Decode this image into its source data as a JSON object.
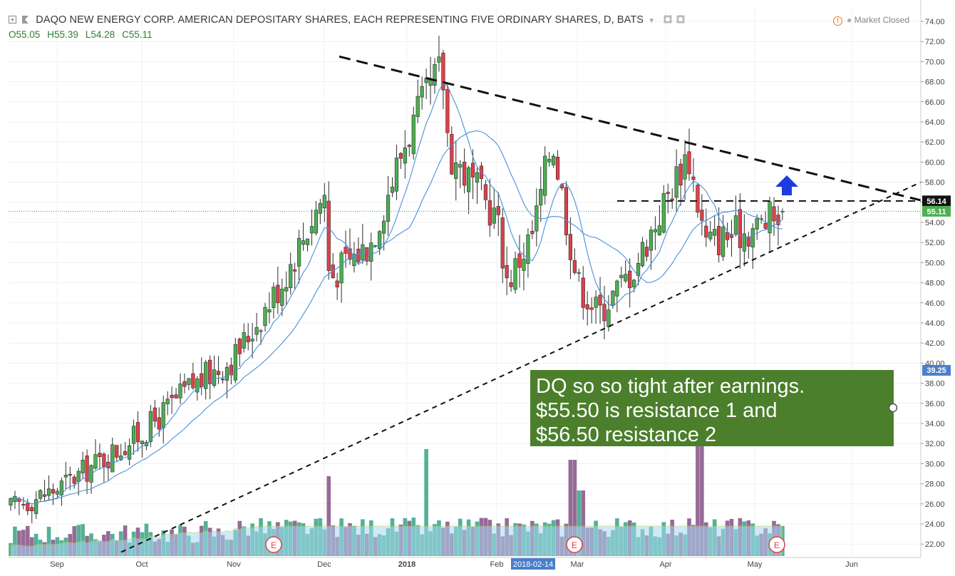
{
  "header": {
    "title": "DAQO NEW ENERGY CORP. AMERICAN DEPOSITARY SHARES, EACH REPRESENTING FIVE ORDINARY SHARES, D, BATS",
    "ohlc": {
      "open": "O55.05",
      "high": "H55.39",
      "low": "L54.28",
      "close": "C55.11"
    },
    "status": "Market Closed"
  },
  "annotation": {
    "line1": "DQ so so tight after earnings.",
    "line2": "$55.50 is resistance 1 and",
    "line3": "$56.50 resistance 2"
  },
  "price_tags": {
    "last": "55.11",
    "resistance": "56.14",
    "volume_scale": "39.25"
  },
  "colors": {
    "up": "#4caf50",
    "down": "#e0404a",
    "ma": "#4a90d9",
    "volume_ma": "#a8d8f0",
    "note_bg": "#4b7f2b",
    "arrow": "#1a3be0"
  },
  "icons": [
    "plus-square-icon",
    "flag-icon",
    "dropdown-icon",
    "settings-icon",
    "warning-icon",
    "earnings-marker-icon",
    "up-arrow-icon"
  ],
  "chart_data": {
    "type": "candlestick",
    "title": "DAQO NEW ENERGY CORP. AMERICAN DEPOSITARY SHARES, EACH REPRESENTING FIVE ORDINARY SHARES, D, BATS",
    "x_ticks": [
      "Sep",
      "Oct",
      "Nov",
      "Dec",
      "2018",
      "Feb",
      "2018-02-14",
      "Mar",
      "Apr",
      "May",
      "Jun"
    ],
    "y_ticks": [
      "74.00",
      "72.00",
      "70.00",
      "68.00",
      "66.00",
      "64.00",
      "62.00",
      "60.00",
      "58.00",
      "56.00",
      "54.00",
      "52.00",
      "50.00",
      "48.00",
      "46.00",
      "44.00",
      "42.00",
      "40.00",
      "38.00",
      "36.00",
      "34.00",
      "32.00",
      "30.00",
      "28.00",
      "26.00",
      "24.00",
      "22.00"
    ],
    "ylim": [
      21,
      75
    ],
    "last_close": 55.11,
    "earnings_markers": [
      "E",
      "E",
      "E"
    ],
    "approx_close_path": [
      {
        "x": "Sep",
        "y": 25.5
      },
      {
        "x": "Oct",
        "y": 27.5
      },
      {
        "x": "Oct",
        "y": 33.0
      },
      {
        "x": "Nov",
        "y": 37.5
      },
      {
        "x": "Nov",
        "y": 40.5
      },
      {
        "x": "Dec",
        "y": 48.0
      },
      {
        "x": "Dec",
        "y": 57.0
      },
      {
        "x": "Dec",
        "y": 48.5
      },
      {
        "x": "2018",
        "y": 52.0
      },
      {
        "x": "2018",
        "y": 62.5
      },
      {
        "x": "2018",
        "y": 69.5
      },
      {
        "x": "2018",
        "y": 61.0
      },
      {
        "x": "Feb",
        "y": 54.5
      },
      {
        "x": "Feb",
        "y": 48.0
      },
      {
        "x": "2018-02-14",
        "y": 53.0
      },
      {
        "x": "2018-02-14",
        "y": 62.5
      },
      {
        "x": "Mar",
        "y": 48.0
      },
      {
        "x": "Mar",
        "y": 45.0
      },
      {
        "x": "Apr",
        "y": 49.5
      },
      {
        "x": "Apr",
        "y": 61.0
      },
      {
        "x": "Apr",
        "y": 52.0
      },
      {
        "x": "May",
        "y": 53.5
      },
      {
        "x": "May",
        "y": 55.11
      }
    ],
    "trendlines": [
      {
        "name": "descending resistance",
        "from": {
          "x": "Dec",
          "y": 70.5
        },
        "to": {
          "x": "Jun",
          "y": 56.0
        }
      },
      {
        "name": "ascending support",
        "from": {
          "x": "Sep",
          "y": 21.0
        },
        "to": {
          "x": "Jun",
          "y": 58.0
        }
      },
      {
        "name": "horizontal resistance",
        "y": 56.14
      }
    ],
    "grid": true
  }
}
